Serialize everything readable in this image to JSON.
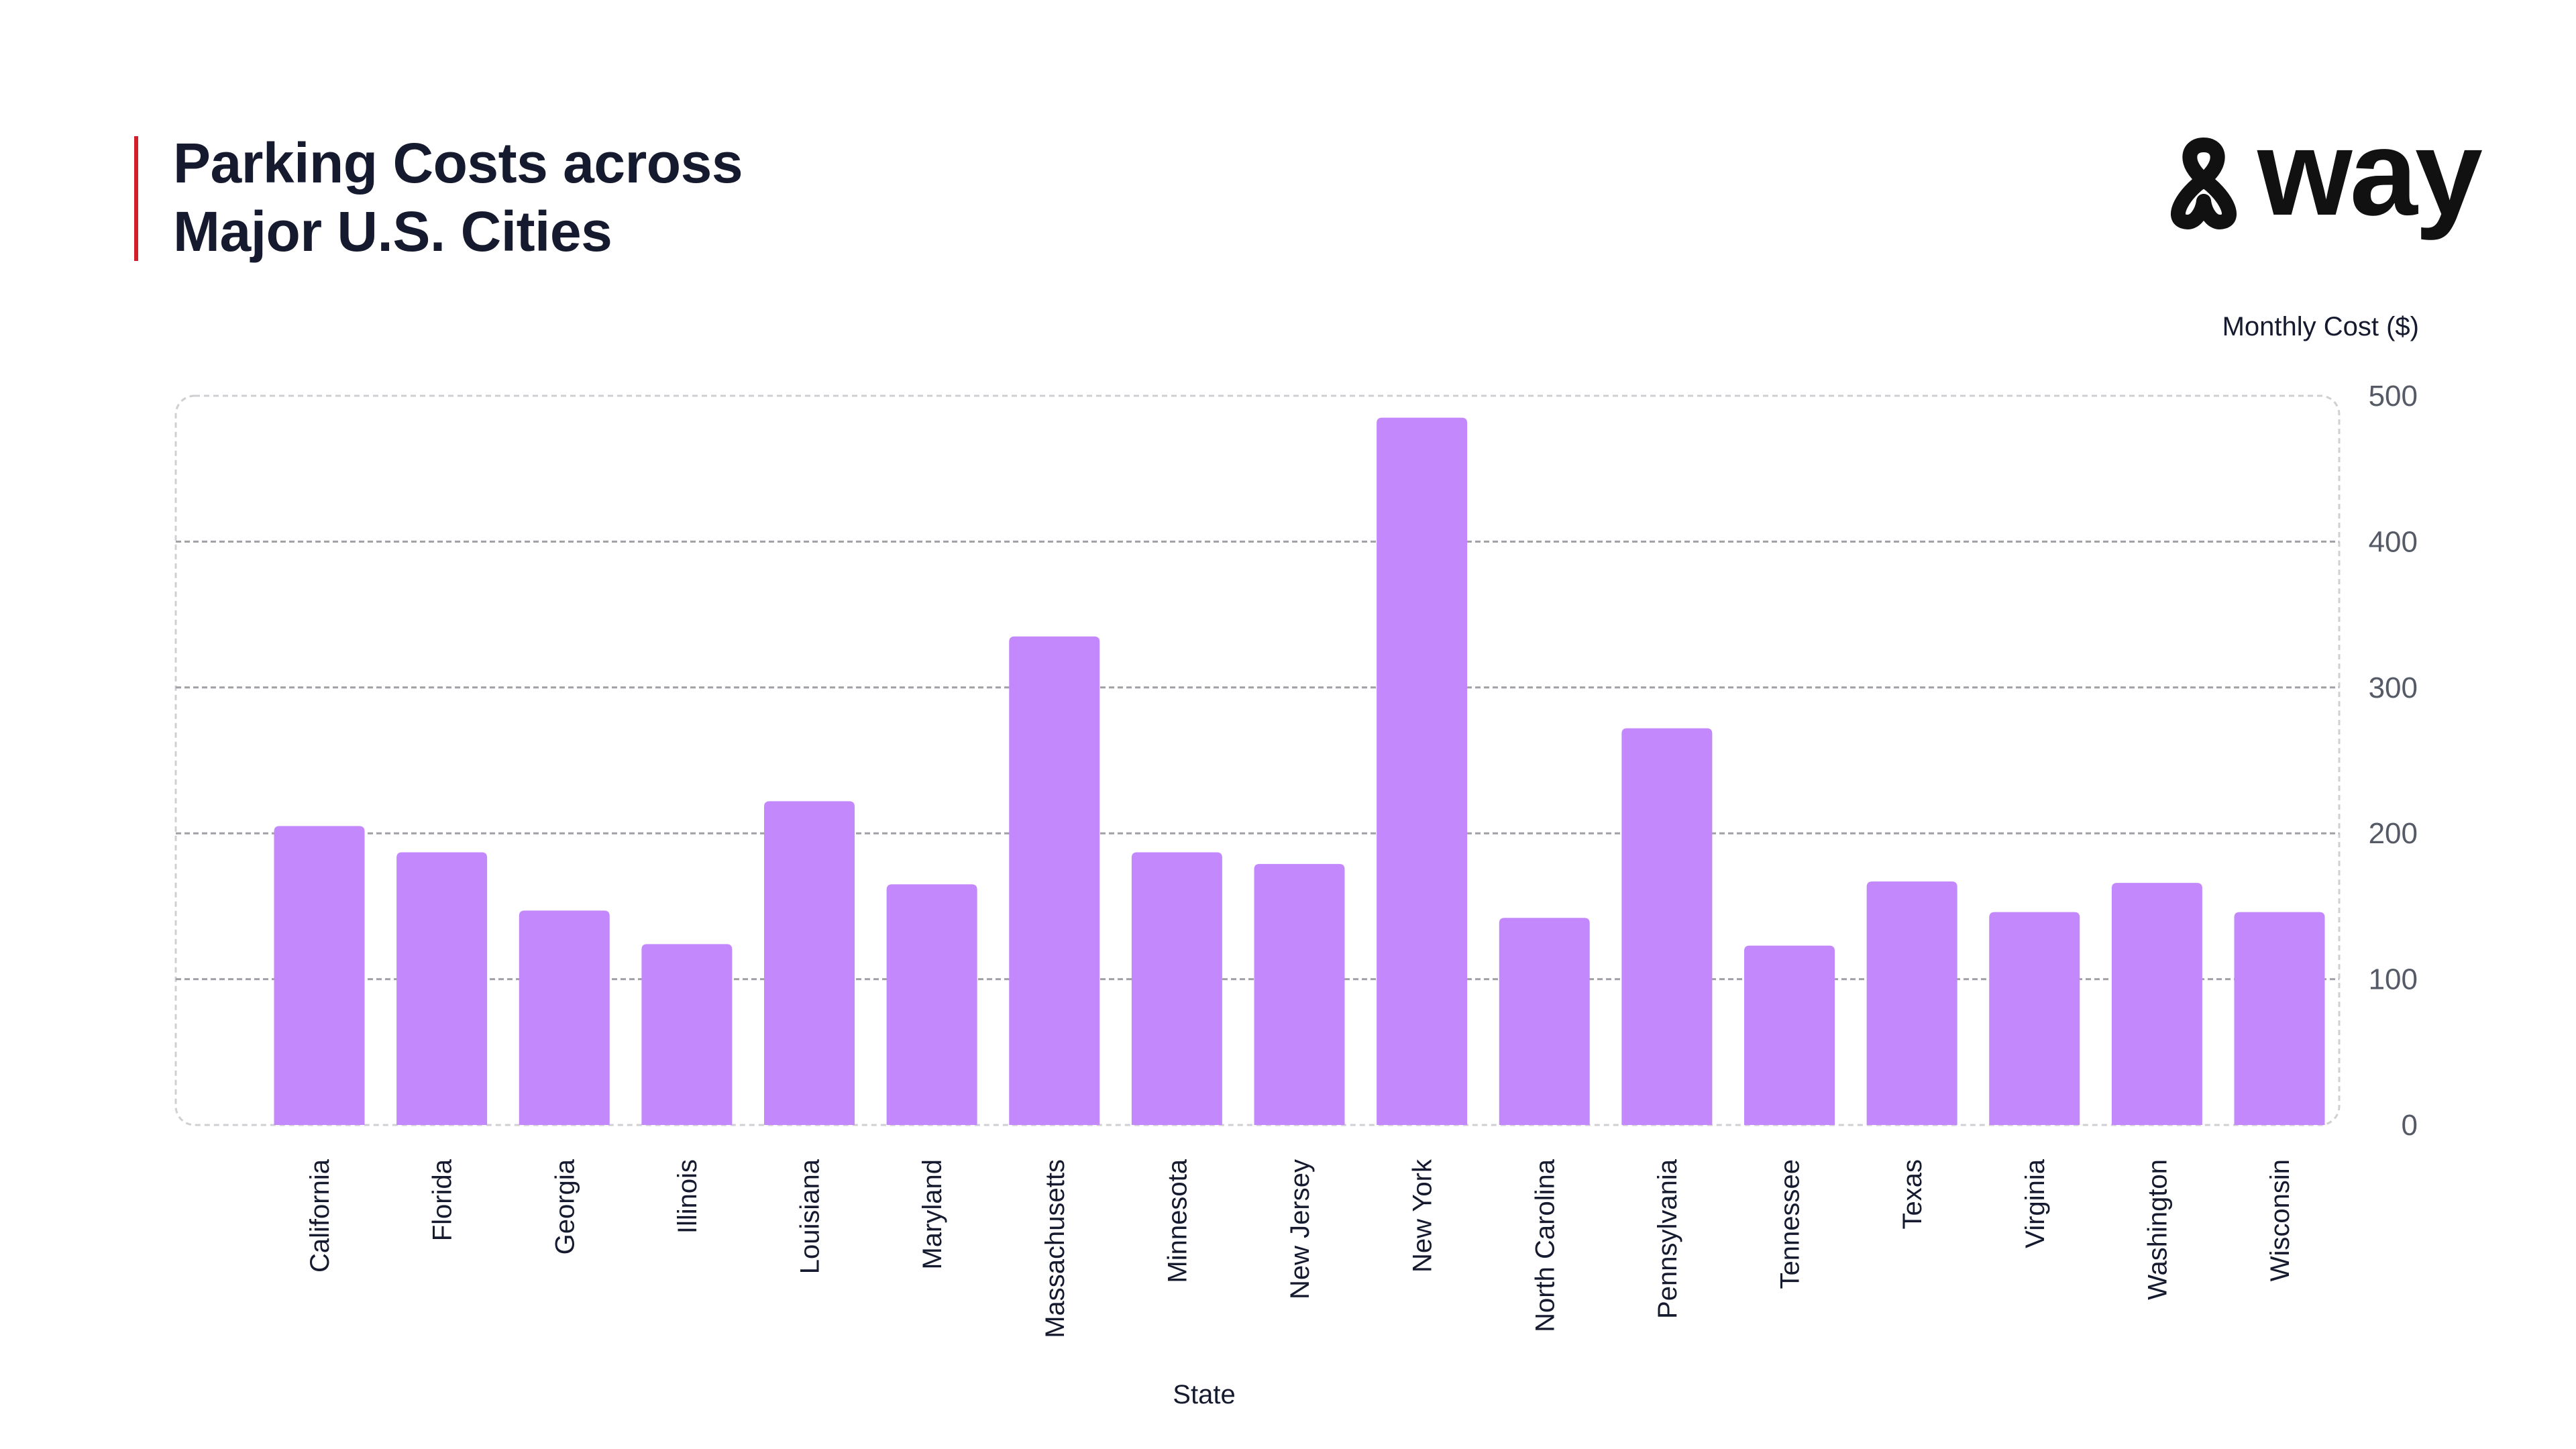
{
  "header": {
    "title_line1": "Parking Costs across",
    "title_line2": "Major U.S. Cities",
    "brand": "way",
    "accent_color": "#d21f2c"
  },
  "chart_data": {
    "type": "bar",
    "xlabel": "State",
    "ylabel": "Monthly Cost ($)",
    "ylim": [
      0,
      500
    ],
    "yticks": [
      0,
      100,
      200,
      300,
      400,
      500
    ],
    "grid": true,
    "y_axis_position": "right",
    "bar_color": "#c389fc",
    "categories": [
      "California",
      "Florida",
      "Georgia",
      "Illinois",
      "Louisiana",
      "Maryland",
      "Massachusetts",
      "Minnesota",
      "New Jersey",
      "New York",
      "North Carolina",
      "Pennsylvania",
      "Tennessee",
      "Texas",
      "Virginia",
      "Washington",
      "Wisconsin"
    ],
    "values": [
      205,
      187,
      147,
      124,
      222,
      165,
      335,
      187,
      179,
      485,
      142,
      272,
      123,
      167,
      146,
      166,
      146
    ]
  }
}
